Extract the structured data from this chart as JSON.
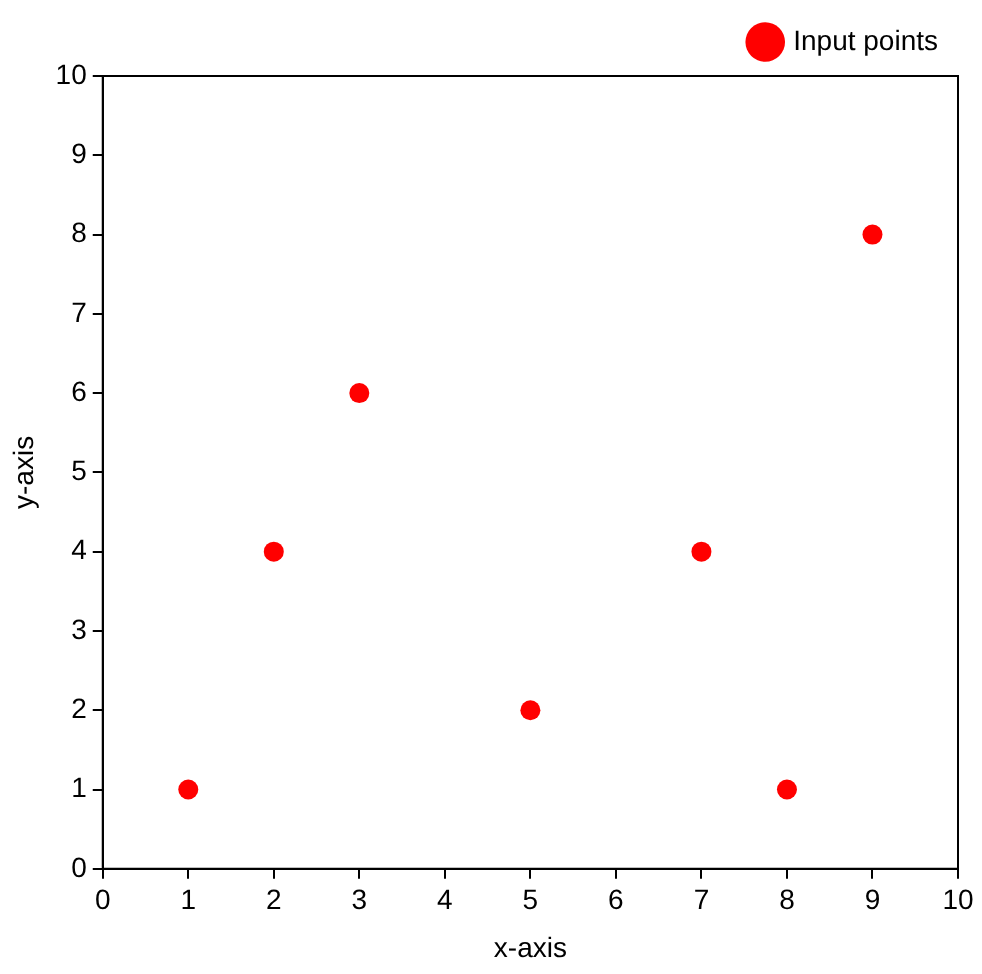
{
  "chart_data": {
    "type": "scatter",
    "xlabel": "x-axis",
    "ylabel": "y-axis",
    "x": [
      1,
      2,
      3,
      5,
      7,
      8,
      9
    ],
    "series": [
      {
        "name": "Input points",
        "color": "#ff0000",
        "values": [
          1,
          4,
          6,
          2,
          4,
          1,
          8
        ]
      }
    ],
    "xlim": [
      0,
      10
    ],
    "ylim": [
      0,
      10
    ],
    "xticks": [
      0,
      1,
      2,
      3,
      4,
      5,
      6,
      7,
      8,
      9,
      10
    ],
    "yticks": [
      0,
      1,
      2,
      3,
      4,
      5,
      6,
      7,
      8,
      9,
      10
    ],
    "grid": false,
    "legend": "top right",
    "marker": "circle"
  }
}
